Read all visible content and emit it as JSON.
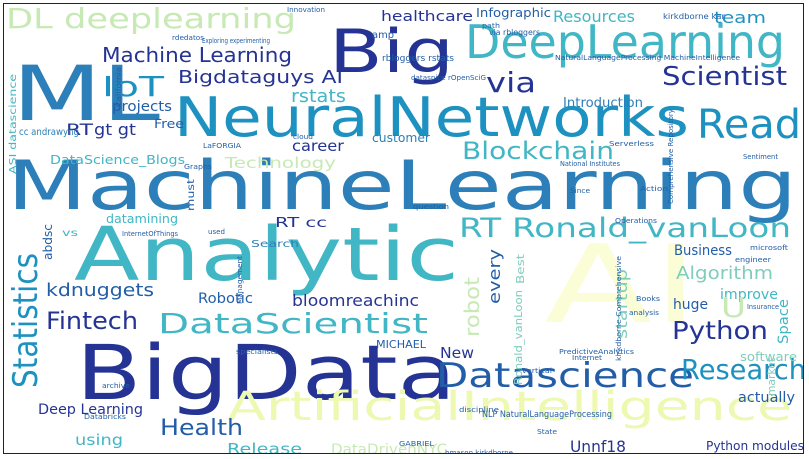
{
  "word_cloud": {
    "words": [
      {
        "text": "MachineLearning",
        "color": "#2c7fb8"
      },
      {
        "text": "BigData",
        "color": "#253494"
      },
      {
        "text": "Analytic",
        "color": "#41b6c4"
      },
      {
        "text": "NeuralNetworks",
        "color": "#1d91c0"
      },
      {
        "text": "ML",
        "color": "#2c7fb8"
      },
      {
        "text": "AI",
        "color": "#fbfdd7"
      },
      {
        "text": "Big",
        "color": "#253494"
      },
      {
        "text": "DeepLearning",
        "color": "#41b6c4"
      },
      {
        "text": "ArtificialIntelligence",
        "color": "#edf8b1"
      },
      {
        "text": "Datascience",
        "color": "#225ea8"
      },
      {
        "text": "DataScientist",
        "color": "#41b6c4"
      },
      {
        "text": "Statistics",
        "color": "#1d91c0"
      },
      {
        "text": "Read",
        "color": "#1d91c0"
      },
      {
        "text": "Blockchain",
        "color": "#41b6c4"
      },
      {
        "text": "RT Ronald_vanLoon",
        "color": "#41b6c4"
      },
      {
        "text": "Scientist",
        "color": "#253494"
      },
      {
        "text": "Research",
        "color": "#1d91c0"
      },
      {
        "text": "Python",
        "color": "#253494"
      },
      {
        "text": "Health",
        "color": "#225ea8"
      },
      {
        "text": "Fintech",
        "color": "#253494"
      },
      {
        "text": "IoT",
        "color": "#1d91c0"
      },
      {
        "text": "via",
        "color": "#253494"
      },
      {
        "text": "DL deeplearning",
        "color": "#c7e9b4"
      },
      {
        "text": "Machine Learning",
        "color": "#253494"
      },
      {
        "text": "Bigdataguys AI",
        "color": "#253494"
      },
      {
        "text": "rstats",
        "color": "#41b6c4"
      },
      {
        "text": "healthcare",
        "color": "#253494"
      },
      {
        "text": "Infographic",
        "color": "#225ea8"
      },
      {
        "text": "Resources",
        "color": "#41b6c4"
      },
      {
        "text": "team",
        "color": "#1d91c0"
      },
      {
        "text": "Introduction",
        "color": "#2c7fb8"
      },
      {
        "text": "projects",
        "color": "#225ea8"
      },
      {
        "text": "RT",
        "color": "#253494"
      },
      {
        "text": "gt gt",
        "color": "#253494"
      },
      {
        "text": "Free",
        "color": "#225ea8"
      },
      {
        "text": "career",
        "color": "#253494"
      },
      {
        "text": "customer",
        "color": "#2c7fb8"
      },
      {
        "text": "DataScience_Blogs",
        "color": "#41b6c4"
      },
      {
        "text": "Technology",
        "color": "#c7e9b4"
      },
      {
        "text": "kdnuggets",
        "color": "#225ea8"
      },
      {
        "text": "Robotic",
        "color": "#225ea8"
      },
      {
        "text": "bloomreachinc",
        "color": "#253494"
      },
      {
        "text": "RT cc",
        "color": "#253494"
      },
      {
        "text": "datamining",
        "color": "#41b6c4"
      },
      {
        "text": "Search",
        "color": "#2c7fb8"
      },
      {
        "text": "every",
        "color": "#225ea8"
      },
      {
        "text": "robot",
        "color": "#c7e9b4"
      },
      {
        "text": "startup",
        "color": "#7fcdbb"
      },
      {
        "text": "Business",
        "color": "#225ea8"
      },
      {
        "text": "Algorithm",
        "color": "#7fcdbb"
      },
      {
        "text": "improve",
        "color": "#41b6c4"
      },
      {
        "text": "huge",
        "color": "#225ea8"
      },
      {
        "text": "U",
        "color": "#c7e9b4"
      },
      {
        "text": "Space",
        "color": "#41b6c4"
      },
      {
        "text": "Deep Learning",
        "color": "#253494"
      },
      {
        "text": "using",
        "color": "#41b6c4"
      },
      {
        "text": "Release",
        "color": "#41b6c4"
      },
      {
        "text": "DataDrivenNYC",
        "color": "#c7e9b4"
      },
      {
        "text": "Unnf18",
        "color": "#253494"
      },
      {
        "text": "New",
        "color": "#253494"
      },
      {
        "text": "MICHAEL",
        "color": "#225ea8"
      },
      {
        "text": "software",
        "color": "#7fcdbb"
      },
      {
        "text": "actually",
        "color": "#225ea8"
      },
      {
        "text": "Python modules",
        "color": "#253494"
      },
      {
        "text": "NLP NaturalLanguageProcessing",
        "color": "#225ea8"
      },
      {
        "text": "Ronald_vanLoon",
        "color": "#7fcdbb"
      },
      {
        "text": "Best",
        "color": "#7fcdbb"
      },
      {
        "text": "market",
        "color": "#7fcdbb"
      },
      {
        "text": "abdsc",
        "color": "#225ea8"
      },
      {
        "text": "amp",
        "color": "#225ea8"
      },
      {
        "text": "cc andrawyng",
        "color": "#2c7fb8"
      },
      {
        "text": "ASI datascience",
        "color": "#41b6c4"
      },
      {
        "text": "path",
        "color": "#225ea8"
      },
      {
        "text": "via rbloggers",
        "color": "#225ea8"
      },
      {
        "text": "kirkdborne kar",
        "color": "#225ea8"
      },
      {
        "text": "NaturalLanguageProcessing MachineIntelligence",
        "color": "#225ea8"
      },
      {
        "text": "rbloggers rstats",
        "color": "#225ea8"
      },
      {
        "text": "Exploring experimenting",
        "color": "#225ea8"
      },
      {
        "text": "rdedatos",
        "color": "#225ea8"
      },
      {
        "text": "dataspice rOpenSciG",
        "color": "#225ea8"
      },
      {
        "text": "Innovation",
        "color": "#225ea8"
      },
      {
        "text": "InternetOfThings",
        "color": "#225ea8"
      },
      {
        "text": "Serverless",
        "color": "#225ea8"
      },
      {
        "text": "National Institutes",
        "color": "#225ea8"
      },
      {
        "text": "Operations",
        "color": "#225ea8"
      },
      {
        "text": "Comprehensive Repository",
        "color": "#225ea8"
      },
      {
        "text": "kirkdborne Comprehensive",
        "color": "#225ea8"
      },
      {
        "text": "Books",
        "color": "#225ea8"
      },
      {
        "text": "analysis",
        "color": "#225ea8"
      },
      {
        "text": "Insurance",
        "color": "#225ea8"
      },
      {
        "text": "Internet",
        "color": "#225ea8"
      },
      {
        "text": "discipline",
        "color": "#225ea8"
      },
      {
        "text": "vertical",
        "color": "#225ea8"
      },
      {
        "text": "State",
        "color": "#225ea8"
      },
      {
        "text": "specialists",
        "color": "#225ea8"
      },
      {
        "text": "archive",
        "color": "#225ea8"
      },
      {
        "text": "Databricks",
        "color": "#225ea8"
      },
      {
        "text": "GABRIEL",
        "color": "#225ea8"
      },
      {
        "text": "hmason kirkdborne",
        "color": "#225ea8"
      },
      {
        "text": "must",
        "color": "#225ea8"
      },
      {
        "text": "question",
        "color": "#225ea8"
      },
      {
        "text": "Graphs",
        "color": "#225ea8"
      },
      {
        "text": "LaFORGIA",
        "color": "#225ea8"
      },
      {
        "text": "California",
        "color": "#225ea8"
      },
      {
        "text": "vs",
        "color": "#41b6c4"
      },
      {
        "text": "microsoft",
        "color": "#225ea8"
      },
      {
        "text": "engineer",
        "color": "#225ea8"
      },
      {
        "text": "Sentiment",
        "color": "#225ea8"
      },
      {
        "text": "Action",
        "color": "#225ea8"
      },
      {
        "text": "Since",
        "color": "#225ea8"
      },
      {
        "text": "Management",
        "color": "#225ea8"
      },
      {
        "text": "used",
        "color": "#225ea8"
      },
      {
        "text": "cloud",
        "color": "#225ea8"
      },
      {
        "text": "PredictiveAnalytics",
        "color": "#225ea8"
      }
    ]
  }
}
